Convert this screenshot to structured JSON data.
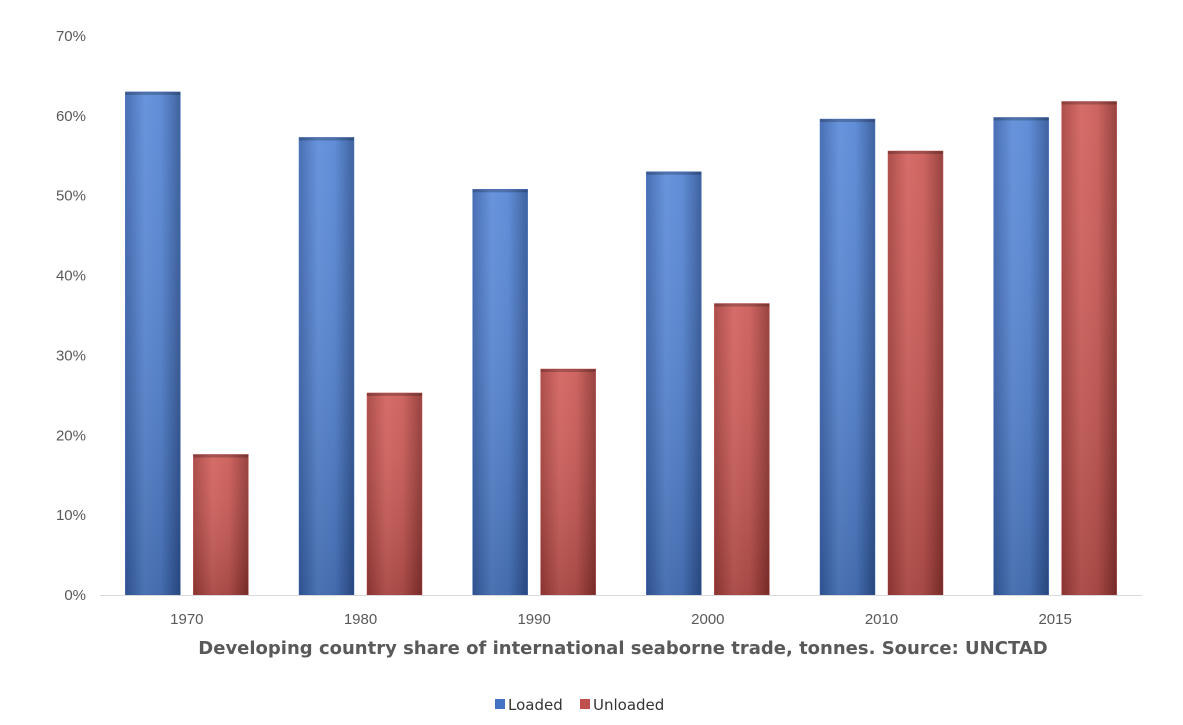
{
  "chart_data": {
    "type": "bar",
    "categories": [
      "1970",
      "1980",
      "1990",
      "2000",
      "2010",
      "2015"
    ],
    "series": [
      {
        "name": "Loaded",
        "values": [
          63,
          57.3,
          50.8,
          53,
          59.6,
          59.8
        ],
        "color": "#4472C4"
      },
      {
        "name": "Unloaded",
        "values": [
          17.6,
          25.3,
          28.3,
          36.5,
          55.6,
          61.8
        ],
        "color": "#C0504D"
      }
    ],
    "title": "",
    "xlabel": "Developing country share of international seaborne trade, tonnes. Source: UNCTAD",
    "ylabel": "",
    "ylim": [
      0,
      70
    ],
    "yticks": [
      "0%",
      "10%",
      "20%",
      "30%",
      "40%",
      "50%",
      "60%",
      "70%"
    ],
    "grid": false,
    "legend": "bottom"
  }
}
